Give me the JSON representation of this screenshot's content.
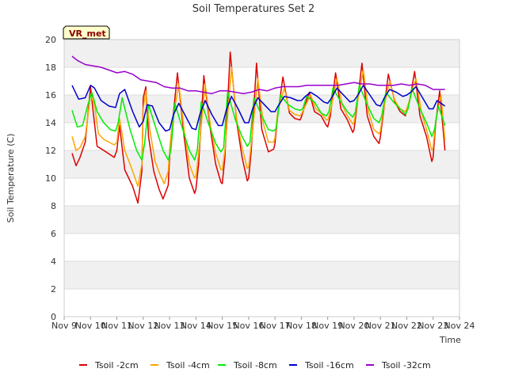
{
  "chart_data": {
    "type": "line",
    "title": "Soil Temperatures Set 2",
    "xlabel": "Time",
    "ylabel": "Soil Temperature (C)",
    "badge": "VR_met",
    "ylim": [
      0,
      20
    ],
    "yticks": [
      0,
      2,
      4,
      6,
      8,
      10,
      12,
      14,
      16,
      18,
      20
    ],
    "xlim": [
      9,
      24
    ],
    "xticks": [
      {
        "value": 9,
        "label": "Nov 9"
      },
      {
        "value": 10,
        "label": "Nov 10"
      },
      {
        "value": 11,
        "label": "Nov 11"
      },
      {
        "value": 12,
        "label": "Nov 12"
      },
      {
        "value": 13,
        "label": "Nov 13"
      },
      {
        "value": 14,
        "label": "Nov 14"
      },
      {
        "value": 15,
        "label": "Nov 15"
      },
      {
        "value": 16,
        "label": "Nov 16"
      },
      {
        "value": 17,
        "label": "Nov 17"
      },
      {
        "value": 18,
        "label": "Nov 18"
      },
      {
        "value": 19,
        "label": "Nov 19"
      },
      {
        "value": 20,
        "label": "Nov 20"
      },
      {
        "value": 21,
        "label": "Nov 21"
      },
      {
        "value": 22,
        "label": "Nov 22"
      },
      {
        "value": 23,
        "label": "Nov 23"
      },
      {
        "value": 24,
        "label": "Nov 24"
      }
    ],
    "colors": {
      "band": "#f0f0f0",
      "background": "#ffffff",
      "grid": "#dddddd",
      "badge_bg": "#ffffcc"
    },
    "series": [
      {
        "name": "Tsoil -2cm",
        "color": "#dd0000",
        "x": [
          9.3,
          9.45,
          9.6,
          9.8,
          10.0,
          10.1,
          10.25,
          10.5,
          10.9,
          11.0,
          11.1,
          11.3,
          11.6,
          11.8,
          11.95,
          12.0,
          12.1,
          12.2,
          12.4,
          12.6,
          12.75,
          12.95,
          13.0,
          13.1,
          13.3,
          13.55,
          13.75,
          13.95,
          14.0,
          14.1,
          14.3,
          14.55,
          14.75,
          14.95,
          15.0,
          15.1,
          15.3,
          15.55,
          15.75,
          15.95,
          16.0,
          16.1,
          16.3,
          16.5,
          16.75,
          16.95,
          17.0,
          17.1,
          17.3,
          17.55,
          17.75,
          17.95,
          18.0,
          18.1,
          18.3,
          18.5,
          18.75,
          18.95,
          19.0,
          19.1,
          19.3,
          19.5,
          19.75,
          19.95,
          20.0,
          20.1,
          20.3,
          20.5,
          20.75,
          20.95,
          21.0,
          21.1,
          21.3,
          21.55,
          21.75,
          21.95,
          22.0,
          22.1,
          22.3,
          22.5,
          22.75,
          22.95,
          23.0,
          23.1,
          23.25,
          23.45
        ],
        "y": [
          11.8,
          10.9,
          11.5,
          12.6,
          16.6,
          14.8,
          12.3,
          12.0,
          11.5,
          12.0,
          13.8,
          10.6,
          9.4,
          8.2,
          10.5,
          15.8,
          16.6,
          13.0,
          10.5,
          9.2,
          8.5,
          9.5,
          11.5,
          13.8,
          17.6,
          13.0,
          10.0,
          8.9,
          9.2,
          11.0,
          17.4,
          13.5,
          11.0,
          9.7,
          9.6,
          11.5,
          19.1,
          14.0,
          11.5,
          9.8,
          10.0,
          12.0,
          18.3,
          13.5,
          11.9,
          12.1,
          12.5,
          14.5,
          17.3,
          14.7,
          14.3,
          14.2,
          14.4,
          15.0,
          16.2,
          14.8,
          14.5,
          13.8,
          13.7,
          14.5,
          17.6,
          15.0,
          14.2,
          13.3,
          13.5,
          15.0,
          18.3,
          14.5,
          13.0,
          12.5,
          13.0,
          14.5,
          17.5,
          15.5,
          14.8,
          14.5,
          15.0,
          15.5,
          17.7,
          14.5,
          13.0,
          11.2,
          11.5,
          14.0,
          16.3,
          12.0
        ]
      },
      {
        "name": "Tsoil -4cm",
        "color": "#ffa500",
        "x": [
          9.3,
          9.45,
          9.6,
          9.8,
          10.0,
          10.15,
          10.3,
          10.5,
          10.9,
          11.0,
          11.1,
          11.3,
          11.6,
          11.8,
          11.95,
          12.0,
          12.1,
          12.25,
          12.45,
          12.65,
          12.8,
          12.95,
          13.0,
          13.1,
          13.35,
          13.55,
          13.75,
          13.95,
          14.0,
          14.1,
          14.35,
          14.55,
          14.75,
          14.95,
          15.0,
          15.1,
          15.35,
          15.55,
          15.75,
          15.95,
          16.0,
          16.1,
          16.35,
          16.55,
          16.75,
          16.95,
          17.0,
          17.1,
          17.35,
          17.55,
          17.75,
          17.95,
          18.0,
          18.1,
          18.35,
          18.55,
          18.75,
          18.95,
          19.0,
          19.1,
          19.35,
          19.55,
          19.75,
          19.95,
          20.0,
          20.1,
          20.35,
          20.55,
          20.75,
          20.95,
          21.0,
          21.1,
          21.35,
          21.55,
          21.75,
          21.95,
          22.0,
          22.1,
          22.35,
          22.55,
          22.75,
          22.95,
          23.0,
          23.1,
          23.3,
          23.45
        ],
        "y": [
          13.0,
          12.0,
          12.2,
          13.0,
          16.0,
          15.3,
          13.2,
          12.8,
          12.4,
          12.6,
          14.3,
          12.0,
          10.5,
          9.4,
          11.0,
          15.0,
          16.3,
          13.5,
          11.2,
          10.2,
          9.6,
          10.5,
          12.0,
          14.0,
          16.8,
          13.5,
          11.0,
          10.0,
          10.1,
          11.8,
          16.8,
          13.8,
          11.8,
          10.6,
          10.6,
          12.0,
          18.0,
          14.2,
          12.2,
          10.7,
          10.8,
          12.5,
          17.2,
          14.0,
          12.6,
          12.6,
          12.9,
          14.8,
          16.5,
          14.9,
          14.6,
          14.5,
          14.6,
          15.0,
          16.0,
          15.0,
          14.7,
          14.2,
          14.2,
          14.8,
          17.2,
          15.3,
          14.5,
          13.9,
          14.0,
          15.2,
          17.8,
          14.8,
          13.5,
          13.2,
          13.4,
          14.8,
          17.0,
          15.6,
          15.0,
          14.8,
          15.0,
          15.6,
          17.2,
          14.8,
          13.5,
          12.0,
          12.2,
          14.2,
          16.0,
          12.7
        ]
      },
      {
        "name": "Tsoil -8cm",
        "color": "#00ee00",
        "x": [
          9.3,
          9.5,
          9.7,
          9.9,
          10.05,
          10.25,
          10.5,
          10.75,
          10.95,
          11.05,
          11.2,
          11.5,
          11.75,
          11.95,
          12.05,
          12.2,
          12.5,
          12.75,
          12.95,
          13.05,
          13.2,
          13.5,
          13.75,
          13.95,
          14.05,
          14.2,
          14.5,
          14.75,
          14.95,
          15.05,
          15.2,
          15.5,
          15.75,
          15.95,
          16.05,
          16.2,
          16.5,
          16.75,
          16.95,
          17.05,
          17.2,
          17.5,
          17.75,
          17.95,
          18.05,
          18.2,
          18.5,
          18.75,
          18.95,
          19.05,
          19.2,
          19.5,
          19.75,
          19.95,
          20.05,
          20.2,
          20.5,
          20.75,
          20.95,
          21.05,
          21.2,
          21.5,
          21.75,
          21.95,
          22.05,
          22.2,
          22.5,
          22.75,
          22.95,
          23.05,
          23.2,
          23.45
        ],
        "y": [
          14.9,
          13.7,
          13.8,
          15.3,
          16.2,
          14.8,
          14.0,
          13.5,
          13.4,
          14.0,
          15.8,
          13.5,
          12.0,
          11.3,
          12.5,
          15.3,
          13.5,
          12.0,
          11.3,
          12.0,
          15.4,
          13.5,
          12.0,
          11.3,
          12.0,
          15.5,
          13.8,
          12.5,
          11.9,
          12.2,
          16.2,
          14.2,
          13.0,
          12.3,
          12.6,
          15.8,
          14.5,
          13.5,
          13.4,
          13.6,
          16.0,
          15.3,
          15.0,
          14.9,
          15.0,
          15.9,
          15.5,
          14.7,
          14.5,
          14.8,
          16.5,
          15.5,
          14.8,
          14.4,
          14.8,
          16.7,
          15.3,
          14.3,
          14.0,
          14.5,
          16.2,
          15.5,
          15.0,
          14.6,
          15.0,
          16.5,
          15.0,
          14.0,
          13.0,
          13.5,
          15.2,
          13.8
        ]
      },
      {
        "name": "Tsoil -16cm",
        "color": "#0000cc",
        "x": [
          9.3,
          9.55,
          9.8,
          10.0,
          10.15,
          10.4,
          10.7,
          10.95,
          11.1,
          11.3,
          11.6,
          11.85,
          12.0,
          12.15,
          12.35,
          12.6,
          12.85,
          13.0,
          13.15,
          13.35,
          13.6,
          13.85,
          14.0,
          14.15,
          14.35,
          14.6,
          14.85,
          15.0,
          15.15,
          15.35,
          15.6,
          15.85,
          16.0,
          16.15,
          16.35,
          16.6,
          16.85,
          17.0,
          17.15,
          17.35,
          17.6,
          17.85,
          18.0,
          18.15,
          18.35,
          18.6,
          18.85,
          19.0,
          19.15,
          19.35,
          19.6,
          19.85,
          20.0,
          20.15,
          20.35,
          20.6,
          20.85,
          21.0,
          21.15,
          21.35,
          21.6,
          21.85,
          22.0,
          22.15,
          22.35,
          22.6,
          22.85,
          23.0,
          23.15,
          23.45
        ],
        "y": [
          16.7,
          15.7,
          15.8,
          16.7,
          16.5,
          15.6,
          15.2,
          15.1,
          16.1,
          16.4,
          14.8,
          13.7,
          14.1,
          15.3,
          15.2,
          14.0,
          13.4,
          13.5,
          14.6,
          15.4,
          14.5,
          13.6,
          13.5,
          14.6,
          15.6,
          14.6,
          13.8,
          13.8,
          14.9,
          15.9,
          15.0,
          14.0,
          14.0,
          15.0,
          15.8,
          15.3,
          14.8,
          14.8,
          15.3,
          15.9,
          15.8,
          15.6,
          15.6,
          15.9,
          16.2,
          15.9,
          15.5,
          15.4,
          15.8,
          16.5,
          16.0,
          15.5,
          15.6,
          16.0,
          16.7,
          16.0,
          15.3,
          15.2,
          15.8,
          16.4,
          16.2,
          15.9,
          16.0,
          16.2,
          16.6,
          15.8,
          15.0,
          15.0,
          15.6,
          15.2
        ]
      },
      {
        "name": "Tsoil -32cm",
        "color": "#9900cc",
        "x": [
          9.3,
          9.5,
          9.8,
          10.1,
          10.4,
          10.7,
          11.0,
          11.3,
          11.6,
          11.9,
          12.2,
          12.5,
          12.8,
          13.1,
          13.4,
          13.7,
          14.0,
          14.3,
          14.6,
          14.9,
          15.2,
          15.5,
          15.8,
          16.1,
          16.4,
          16.7,
          17.0,
          17.3,
          17.6,
          17.9,
          18.2,
          18.5,
          18.8,
          19.1,
          19.4,
          19.7,
          20.0,
          20.3,
          20.6,
          20.9,
          21.2,
          21.5,
          21.8,
          22.1,
          22.4,
          22.7,
          23.0,
          23.2,
          23.45
        ],
        "y": [
          18.8,
          18.5,
          18.2,
          18.1,
          18.0,
          17.8,
          17.6,
          17.7,
          17.5,
          17.1,
          17.0,
          16.9,
          16.6,
          16.5,
          16.5,
          16.3,
          16.3,
          16.2,
          16.1,
          16.3,
          16.3,
          16.2,
          16.1,
          16.2,
          16.4,
          16.3,
          16.5,
          16.6,
          16.6,
          16.6,
          16.7,
          16.7,
          16.7,
          16.7,
          16.7,
          16.8,
          16.9,
          16.8,
          16.8,
          16.7,
          16.7,
          16.7,
          16.8,
          16.7,
          16.8,
          16.7,
          16.4,
          16.4,
          16.4
        ]
      }
    ]
  }
}
